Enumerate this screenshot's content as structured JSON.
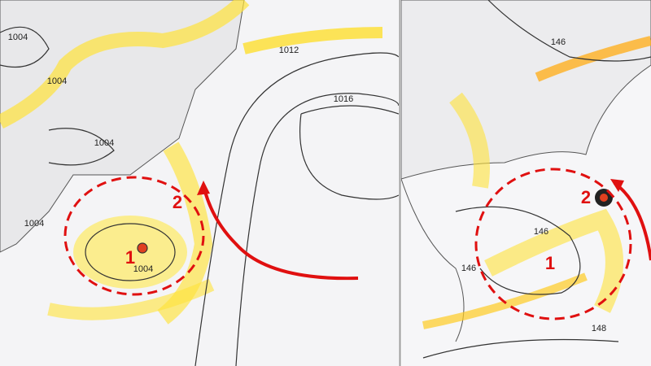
{
  "panels": [
    {
      "contour_labels": [
        "1004",
        "1004",
        "1004",
        "1004",
        "1004",
        "1012",
        "1016"
      ],
      "markers": [
        "1",
        "2"
      ]
    },
    {
      "contour_labels": [
        "146",
        "146",
        "146",
        "148"
      ],
      "markers": [
        "1",
        "2"
      ]
    }
  ]
}
